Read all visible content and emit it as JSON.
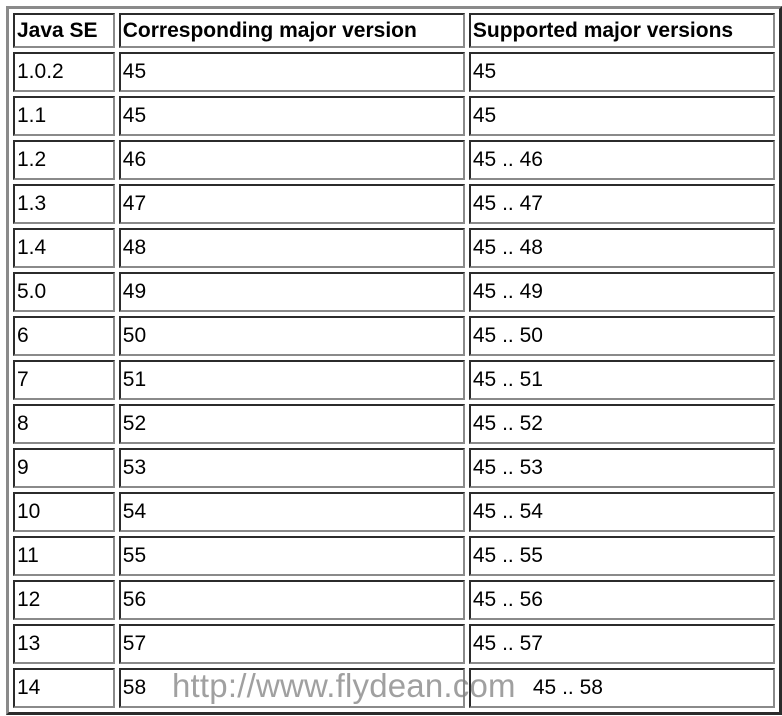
{
  "table": {
    "headers": [
      "Java SE",
      "Corresponding major version",
      "Supported major versions"
    ],
    "rows": [
      [
        "1.0.2",
        "45",
        "45"
      ],
      [
        "1.1",
        "45",
        "45"
      ],
      [
        "1.2",
        "46",
        "45 .. 46"
      ],
      [
        "1.3",
        "47",
        "45 .. 47"
      ],
      [
        "1.4",
        "48",
        "45 .. 48"
      ],
      [
        "5.0",
        "49",
        "45 .. 49"
      ],
      [
        "6",
        "50",
        "45 .. 50"
      ],
      [
        "7",
        "51",
        "45 .. 51"
      ],
      [
        "8",
        "52",
        "45 .. 52"
      ],
      [
        "9",
        "53",
        "45 .. 53"
      ],
      [
        "10",
        "54",
        "45 .. 54"
      ],
      [
        "11",
        "55",
        "45 .. 55"
      ],
      [
        "12",
        "56",
        "45 .. 56"
      ],
      [
        "13",
        "57",
        "45 .. 57"
      ],
      [
        "14",
        "58",
        "45 .. 58"
      ]
    ]
  },
  "watermark": "http://www.flydean.com"
}
